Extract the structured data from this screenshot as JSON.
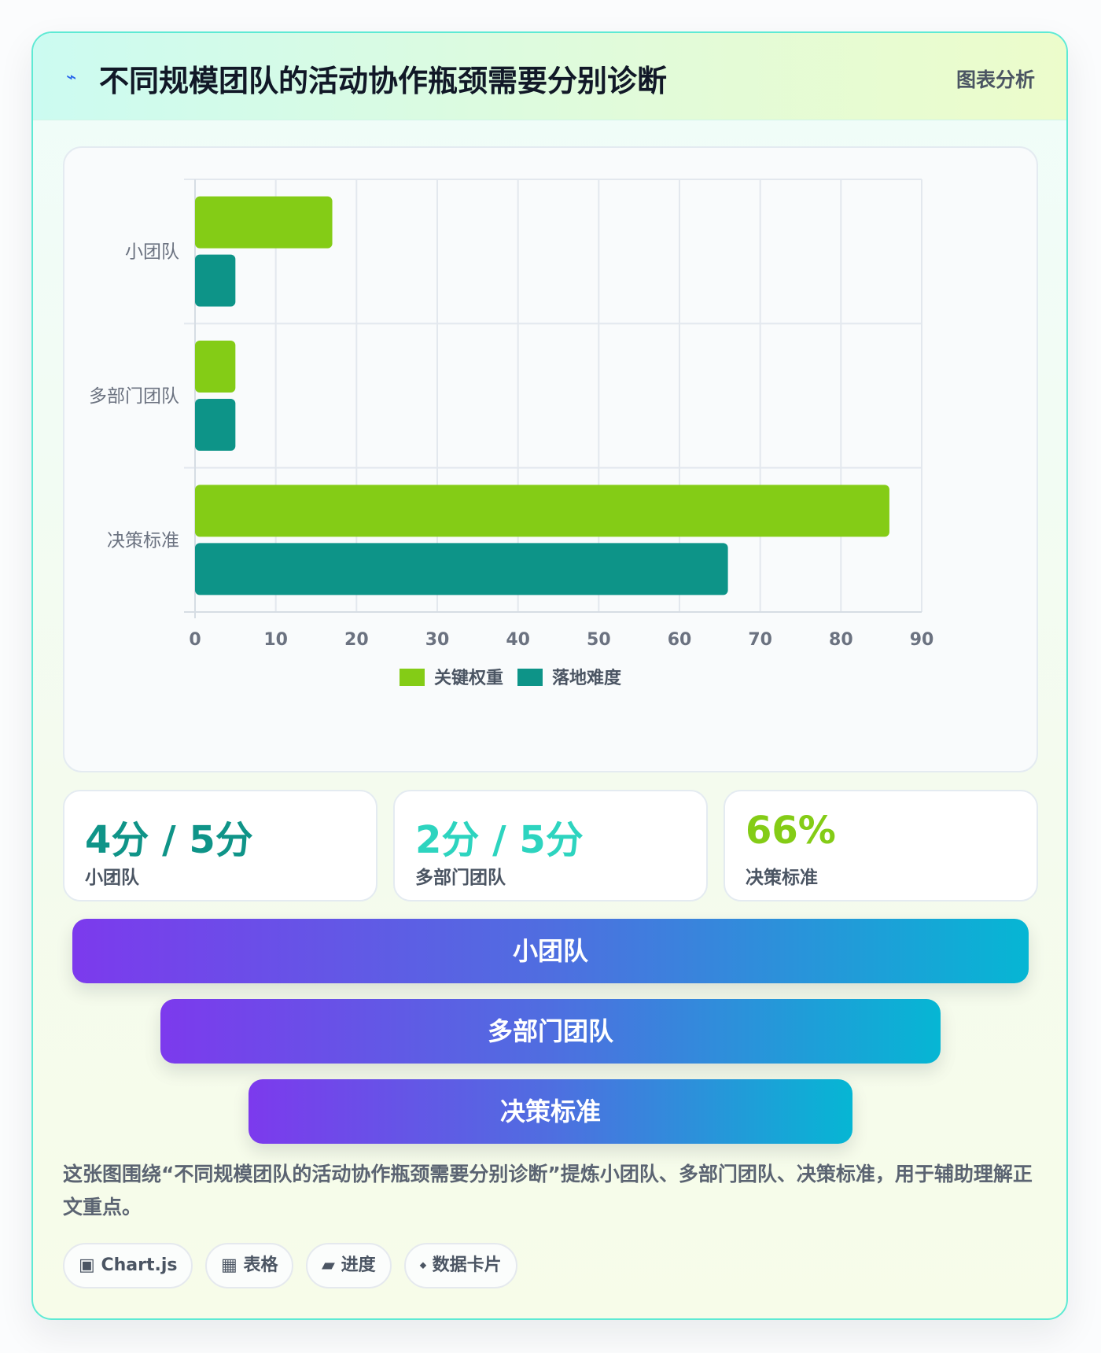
{
  "header": {
    "icon": "lightning-icon",
    "icon_glyph": "⌁",
    "title": "不同规模团队的活动协作瓶颈需要分别诊断",
    "tag": "图表分析"
  },
  "chart_data": {
    "type": "bar",
    "orientation": "horizontal",
    "categories": [
      "小团队",
      "多部门团队",
      "决策标准"
    ],
    "series": [
      {
        "name": "关键权重",
        "values": [
          17,
          5,
          86
        ],
        "color": "#84cc16"
      },
      {
        "name": "落地难度",
        "values": [
          5,
          5,
          66
        ],
        "color": "#0d9488"
      }
    ],
    "xlim": [
      0,
      90
    ],
    "xticks": [
      0,
      10,
      20,
      30,
      40,
      50,
      60,
      70,
      80,
      90
    ],
    "grid": true,
    "legend": "bottom"
  },
  "stats": [
    {
      "value": "4分 / 5分",
      "label": "小团队",
      "color": "#0f9488"
    },
    {
      "value": "2分 / 5分",
      "label": "多部门团队",
      "color": "#2dd4bf"
    },
    {
      "value": "66%",
      "label": "决策标准",
      "color": "#84cc16"
    }
  ],
  "funnel": [
    {
      "label": "小团队"
    },
    {
      "label": "多部门团队"
    },
    {
      "label": "决策标准"
    }
  ],
  "description": "这张图围绕“不同规模团队的活动协作瓶颈需要分别诊断”提炼小团队、多部门团队、决策标准，用于辅助理解正文重点。",
  "chips": [
    {
      "glyph": "▣",
      "icon": "chart-icon",
      "label": "Chart.js"
    },
    {
      "glyph": "▦",
      "icon": "table-icon",
      "label": "表格"
    },
    {
      "glyph": "▰",
      "icon": "progress-icon",
      "label": "进度"
    },
    {
      "glyph": "⬩",
      "icon": "diamond-icon",
      "label": "数据卡片"
    }
  ]
}
